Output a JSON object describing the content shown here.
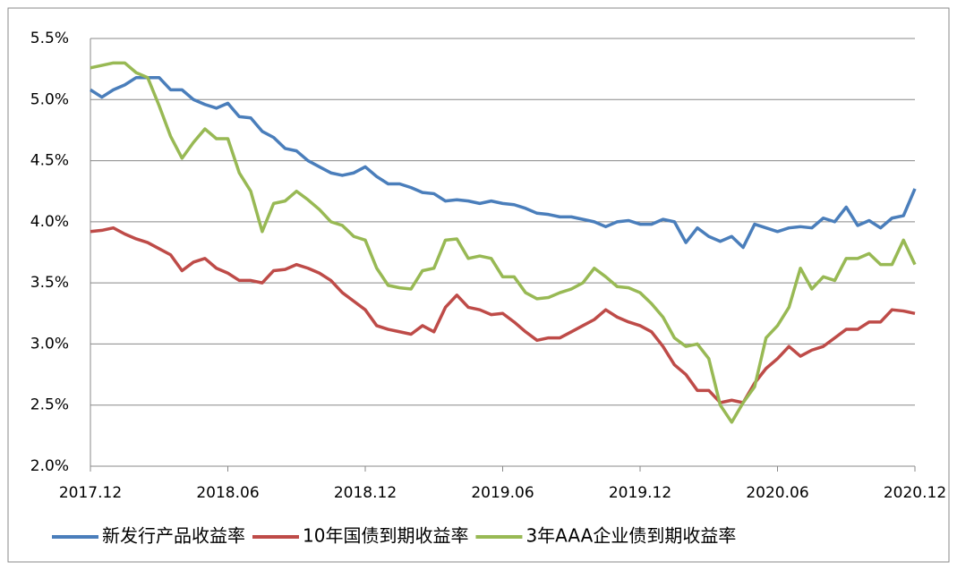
{
  "chart_data": {
    "type": "line",
    "categories": [
      "2017.12",
      null,
      null,
      null,
      null,
      null,
      null,
      null,
      null,
      null,
      null,
      null,
      "2018.06",
      null,
      null,
      null,
      null,
      null,
      null,
      null,
      null,
      null,
      null,
      null,
      "2018.12",
      null,
      null,
      null,
      null,
      null,
      null,
      null,
      null,
      null,
      null,
      null,
      "2019.06",
      null,
      null,
      null,
      null,
      null,
      null,
      null,
      null,
      null,
      null,
      null,
      "2019.12",
      null,
      null,
      null,
      null,
      null,
      null,
      null,
      null,
      null,
      null,
      null,
      "2020.06",
      null,
      null,
      null,
      null,
      null,
      null,
      null,
      null,
      null,
      null,
      null,
      "2020.12"
    ],
    "series": [
      {
        "name": "新发行产品收益率",
        "color": "#4a7ebb",
        "values": [
          5.08,
          5.02,
          5.08,
          5.12,
          5.18,
          5.18,
          5.18,
          5.08,
          5.08,
          5.0,
          4.96,
          4.93,
          4.97,
          4.86,
          4.85,
          4.74,
          4.69,
          4.6,
          4.58,
          4.5,
          4.45,
          4.4,
          4.38,
          4.4,
          4.45,
          4.37,
          4.31,
          4.31,
          4.28,
          4.24,
          4.23,
          4.17,
          4.18,
          4.17,
          4.15,
          4.17,
          4.15,
          4.14,
          4.11,
          4.07,
          4.06,
          4.04,
          4.04,
          4.02,
          4.0,
          3.96,
          4.0,
          4.01,
          3.98,
          3.98,
          4.02,
          4.0,
          3.83,
          3.95,
          3.88,
          3.84,
          3.88,
          3.79,
          3.98,
          3.95,
          3.92,
          3.95,
          3.96,
          3.95,
          4.03,
          4.0,
          4.12,
          3.97,
          4.01,
          3.95,
          4.03,
          4.05,
          4.27
        ]
      },
      {
        "name": "10年国债到期收益率",
        "color": "#be4b48",
        "values": [
          3.92,
          3.93,
          3.95,
          3.9,
          3.86,
          3.83,
          3.78,
          3.73,
          3.6,
          3.67,
          3.7,
          3.62,
          3.58,
          3.52,
          3.52,
          3.5,
          3.6,
          3.61,
          3.65,
          3.62,
          3.58,
          3.52,
          3.42,
          3.35,
          3.28,
          3.15,
          3.12,
          3.1,
          3.08,
          3.15,
          3.1,
          3.3,
          3.4,
          3.3,
          3.28,
          3.24,
          3.25,
          3.18,
          3.1,
          3.03,
          3.05,
          3.05,
          3.1,
          3.15,
          3.2,
          3.28,
          3.22,
          3.18,
          3.15,
          3.1,
          2.98,
          2.83,
          2.75,
          2.62,
          2.62,
          2.52,
          2.54,
          2.52,
          2.68,
          2.8,
          2.88,
          2.98,
          2.9,
          2.95,
          2.98,
          3.05,
          3.12,
          3.12,
          3.18,
          3.18,
          3.28,
          3.27,
          3.25
        ]
      },
      {
        "name": "3年AAA企业债到期收益率",
        "color": "#98b954",
        "values": [
          5.26,
          5.28,
          5.3,
          5.3,
          5.22,
          5.18,
          4.95,
          4.7,
          4.52,
          4.65,
          4.76,
          4.68,
          4.68,
          4.4,
          4.25,
          3.92,
          4.15,
          4.17,
          4.25,
          4.18,
          4.1,
          4.0,
          3.97,
          3.88,
          3.85,
          3.62,
          3.48,
          3.46,
          3.45,
          3.6,
          3.62,
          3.85,
          3.86,
          3.7,
          3.72,
          3.7,
          3.55,
          3.55,
          3.42,
          3.37,
          3.38,
          3.42,
          3.45,
          3.5,
          3.62,
          3.55,
          3.47,
          3.46,
          3.42,
          3.33,
          3.22,
          3.05,
          2.98,
          3.0,
          2.88,
          2.5,
          2.36,
          2.52,
          2.65,
          3.05,
          3.15,
          3.3,
          3.62,
          3.45,
          3.55,
          3.52,
          3.7,
          3.7,
          3.74,
          3.65,
          3.65,
          3.85,
          3.65
        ]
      }
    ],
    "ylim": [
      2.0,
      5.5
    ],
    "yticks": [
      {
        "value": 2.0,
        "label": "2.0%"
      },
      {
        "value": 2.5,
        "label": "2.5%"
      },
      {
        "value": 3.0,
        "label": "3.0%"
      },
      {
        "value": 3.5,
        "label": "3.5%"
      },
      {
        "value": 4.0,
        "label": "4.0%"
      },
      {
        "value": 4.5,
        "label": "4.5%"
      },
      {
        "value": 5.0,
        "label": "5.0%"
      },
      {
        "value": 5.5,
        "label": "5.5%"
      }
    ],
    "grid": true,
    "legend": "bottom"
  }
}
